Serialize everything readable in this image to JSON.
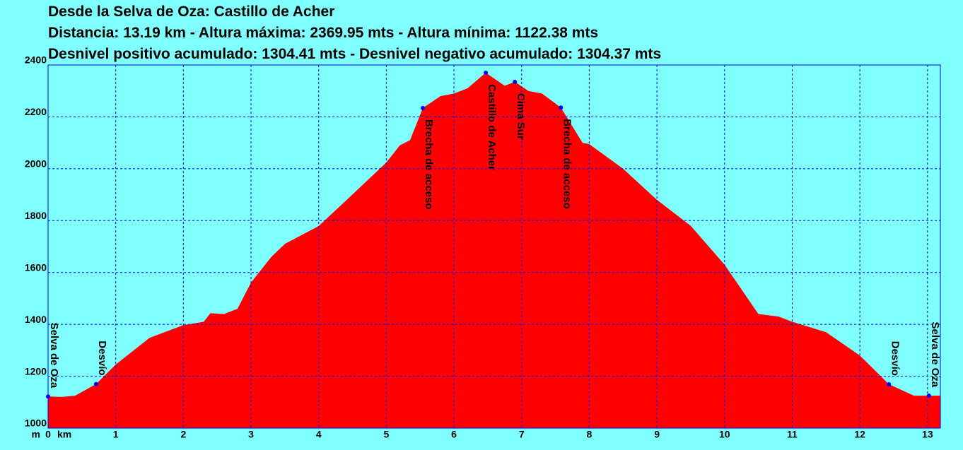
{
  "chart_data": {
    "type": "area",
    "title": "Desde la Selva de Oza:  Castillo de Acher",
    "subtitle": [
      "Distancia: 13.19 km - Altura máxima: 2369.95 mts - Altura mínima: 1122.38 mts",
      "Desnivel positivo acumulado: 1304.41 mts - Desnivel negativo acumulado: 1304.37 mts"
    ],
    "x_label": "km",
    "y_label": "m",
    "x": [
      0,
      0.2,
      0.4,
      0.71,
      1.0,
      1.5,
      2.0,
      2.3,
      2.4,
      2.6,
      2.8,
      3.0,
      3.3,
      3.5,
      4.0,
      4.5,
      5.0,
      5.2,
      5.35,
      5.54,
      5.8,
      6.0,
      6.2,
      6.47,
      6.75,
      6.9,
      7.1,
      7.3,
      7.58,
      7.9,
      8.0,
      8.5,
      9.0,
      9.5,
      10.0,
      10.5,
      10.8,
      11.0,
      11.5,
      12.0,
      12.43,
      12.8,
      13.02,
      13.19
    ],
    "series": [
      {
        "name": "Altura",
        "color": "#ff0000",
        "values": [
          1122,
          1120,
          1125,
          1170,
          1245,
          1348,
          1397,
          1410,
          1443,
          1440,
          1460,
          1561,
          1660,
          1710,
          1779,
          1901,
          2024,
          2090,
          2110,
          2234,
          2280,
          2290,
          2310,
          2370,
          2320,
          2335,
          2300,
          2290,
          2236,
          2100,
          2095,
          2000,
          1880,
          1780,
          1630,
          1440,
          1430,
          1410,
          1370,
          1280,
          1169,
          1125,
          1125,
          1125
        ]
      }
    ],
    "annotations": [
      {
        "label": "Selva de Oza",
        "x": 0,
        "y": 1122
      },
      {
        "label": "Desvío",
        "x": 0.71,
        "y": 1170
      },
      {
        "label": "Brecha de acceso",
        "x": 5.54,
        "y": 2234
      },
      {
        "label": "Castillo de Acher",
        "x": 6.47,
        "y": 2370
      },
      {
        "label": "Cima Sur",
        "x": 6.9,
        "y": 2335
      },
      {
        "label": "Brecha de acceso",
        "x": 7.58,
        "y": 2236
      },
      {
        "label": "Desvío",
        "x": 12.43,
        "y": 1169
      },
      {
        "label": "Selva de Oza",
        "x": 13.02,
        "y": 1125
      }
    ],
    "marker_color": "#0000ff",
    "xlim": [
      0,
      13.19
    ],
    "ylim": [
      1000,
      2400
    ],
    "xticks": [
      0,
      1,
      2,
      3,
      4,
      5,
      6,
      7,
      8,
      9,
      10,
      11,
      12,
      13
    ],
    "yticks": [
      1000,
      1200,
      1400,
      1600,
      1800,
      2000,
      2200,
      2400
    ],
    "grid": true,
    "background": "#80ffff",
    "grid_color": "#0000ff"
  }
}
